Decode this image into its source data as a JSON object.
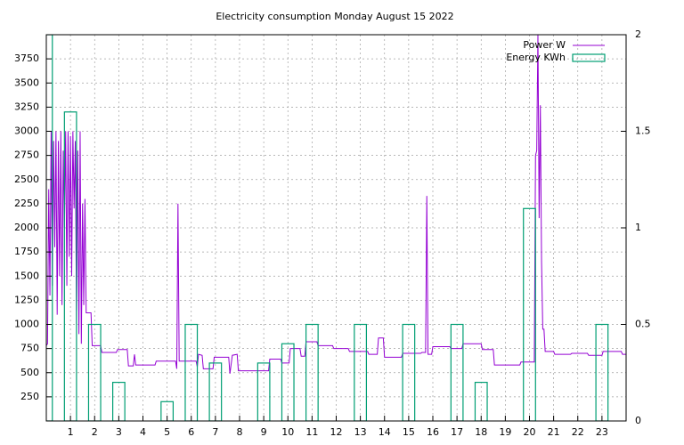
{
  "chart_data": {
    "type": "line",
    "title": "Electricity consumption Monday August 15 2022",
    "xlim": [
      0,
      24
    ],
    "xticks": [
      1,
      2,
      3,
      4,
      5,
      6,
      7,
      8,
      9,
      10,
      11,
      12,
      13,
      14,
      15,
      16,
      17,
      18,
      19,
      20,
      21,
      22,
      23
    ],
    "ylim": [
      0,
      4000
    ],
    "yticks": [
      250,
      500,
      750,
      1000,
      1250,
      1500,
      1750,
      2000,
      2250,
      2500,
      2750,
      3000,
      3250,
      3500,
      3750
    ],
    "y2lim": [
      0,
      2
    ],
    "y2ticks": [
      0,
      0.5,
      1,
      1.5,
      2
    ],
    "grid": true,
    "legend": "top-right",
    "series": [
      {
        "name": "Power W",
        "color": "#9400d3",
        "kind": "line",
        "x": [
          0,
          0.05,
          0.1,
          0.15,
          0.2,
          0.25,
          0.3,
          0.35,
          0.4,
          0.45,
          0.5,
          0.55,
          0.6,
          0.65,
          0.7,
          0.75,
          0.8,
          0.85,
          0.9,
          0.95,
          1.0,
          1.05,
          1.1,
          1.15,
          1.2,
          1.25,
          1.3,
          1.35,
          1.4,
          1.45,
          1.5,
          1.55,
          1.6,
          1.65,
          1.85,
          1.9,
          2.25,
          2.3,
          2.9,
          2.95,
          3.35,
          3.4,
          3.6,
          3.65,
          3.7,
          4.5,
          4.55,
          5.35,
          5.4,
          5.45,
          5.5,
          6.2,
          6.25,
          6.3,
          6.45,
          6.5,
          6.9,
          6.95,
          7.55,
          7.6,
          7.7,
          7.9,
          7.95,
          9.2,
          9.25,
          9.7,
          9.75,
          10.05,
          10.1,
          10.5,
          10.55,
          10.7,
          10.75,
          11.2,
          11.25,
          11.85,
          11.9,
          12.5,
          12.55,
          13.3,
          13.35,
          13.7,
          13.75,
          13.95,
          14,
          14.7,
          14.75,
          15.5,
          15.55,
          15.7,
          15.75,
          15.8,
          15.95,
          16,
          16.7,
          16.75,
          17.2,
          17.25,
          18,
          18.05,
          18.5,
          18.55,
          19.6,
          19.65,
          20.2,
          20.25,
          20.3,
          20.35,
          20.4,
          20.45,
          20.5,
          20.55,
          20.6,
          20.65,
          21,
          21.05,
          21.7,
          21.75,
          22.4,
          22.45,
          23,
          23.05,
          23.8,
          23.85,
          24
        ],
        "values": [
          780,
          800,
          2400,
          1300,
          3000,
          1400,
          2900,
          1800,
          3000,
          1100,
          2900,
          1500,
          3000,
          1200,
          2800,
          2000,
          3000,
          1400,
          3000,
          1700,
          2950,
          1500,
          3000,
          2200,
          2900,
          1000,
          2800,
          900,
          3000,
          800,
          2250,
          1200,
          2300,
          1120,
          1120,
          780,
          780,
          710,
          710,
          740,
          740,
          570,
          570,
          690,
          580,
          580,
          620,
          620,
          540,
          2250,
          620,
          620,
          560,
          690,
          680,
          540,
          540,
          660,
          660,
          490,
          680,
          690,
          520,
          520,
          640,
          640,
          600,
          600,
          750,
          750,
          670,
          670,
          820,
          820,
          780,
          780,
          750,
          750,
          720,
          720,
          690,
          690,
          860,
          860,
          660,
          660,
          700,
          700,
          710,
          710,
          2330,
          690,
          690,
          770,
          770,
          750,
          750,
          800,
          800,
          740,
          740,
          580,
          580,
          610,
          610,
          2750,
          2800,
          4000,
          2100,
          3270,
          1650,
          950,
          950,
          720,
          720,
          690,
          690,
          700,
          700,
          680,
          680,
          720,
          720,
          690,
          690
        ]
      },
      {
        "name": "Energy KWh",
        "color": "#009e73",
        "kind": "boxes",
        "axis": "y2",
        "x": [
          0,
          1,
          2,
          3,
          4,
          5,
          6,
          7,
          8,
          9,
          10,
          11,
          12,
          13,
          14,
          15,
          16,
          17,
          18,
          19,
          20,
          21,
          22,
          23
        ],
        "values": [
          2,
          1.6,
          0.5,
          0.2,
          0,
          0.1,
          0.5,
          0.3,
          0,
          0.3,
          0.4,
          0.5,
          0,
          0.5,
          0,
          0.5,
          0,
          0.5,
          0.2,
          0,
          1.1,
          0,
          0,
          0.5
        ]
      }
    ]
  }
}
